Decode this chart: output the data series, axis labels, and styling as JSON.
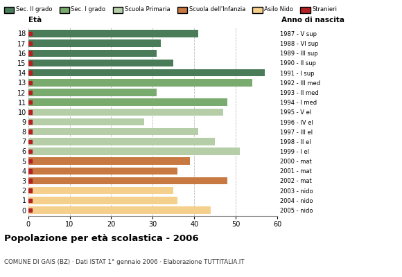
{
  "ages": [
    18,
    17,
    16,
    15,
    14,
    13,
    12,
    11,
    10,
    9,
    8,
    7,
    6,
    5,
    4,
    3,
    2,
    1,
    0
  ],
  "values": [
    41,
    32,
    31,
    35,
    57,
    54,
    31,
    48,
    47,
    28,
    41,
    45,
    51,
    39,
    36,
    48,
    35,
    36,
    44
  ],
  "anno_nascita": [
    "1987 - V sup",
    "1988 - VI sup",
    "1989 - III sup",
    "1990 - II sup",
    "1991 - I sup",
    "1992 - III med",
    "1993 - II med",
    "1994 - I med",
    "1995 - V el",
    "1996 - IV el",
    "1997 - III el",
    "1998 - II el",
    "1999 - I el",
    "2000 - mat",
    "2001 - mat",
    "2002 - mat",
    "2003 - nido",
    "2004 - nido",
    "2005 - nido"
  ],
  "colors": [
    "#4a7c59",
    "#4a7c59",
    "#4a7c59",
    "#4a7c59",
    "#4a7c59",
    "#7aab6e",
    "#7aab6e",
    "#7aab6e",
    "#b5cea8",
    "#b5cea8",
    "#b5cea8",
    "#b5cea8",
    "#b5cea8",
    "#c87941",
    "#c87941",
    "#c87941",
    "#f5d08c",
    "#f5d08c",
    "#f5d08c"
  ],
  "legend_colors": [
    "#4a7c59",
    "#7aab6e",
    "#b5cea8",
    "#c87941",
    "#f5d08c",
    "#b22222"
  ],
  "legend_labels": [
    "Sec. II grado",
    "Sec. I grado",
    "Scuola Primaria",
    "Scuola dell'Infanzia",
    "Asilo Nido",
    "Stranieri"
  ],
  "stranieri_color": "#b22222",
  "title": "Popolazione per età scolastica - 2006",
  "subtitle": "COMUNE DI GAIS (BZ) · Dati ISTAT 1° gennaio 2006 · Elaborazione TUTTITALIA.IT",
  "eta_label": "Età",
  "anno_label": "Anno di nascita",
  "xlim": [
    0,
    60
  ],
  "xticks": [
    0,
    10,
    20,
    30,
    40,
    50,
    60
  ],
  "bar_height": 0.75,
  "background_color": "#ffffff",
  "grid_color": "#bbbbbb"
}
